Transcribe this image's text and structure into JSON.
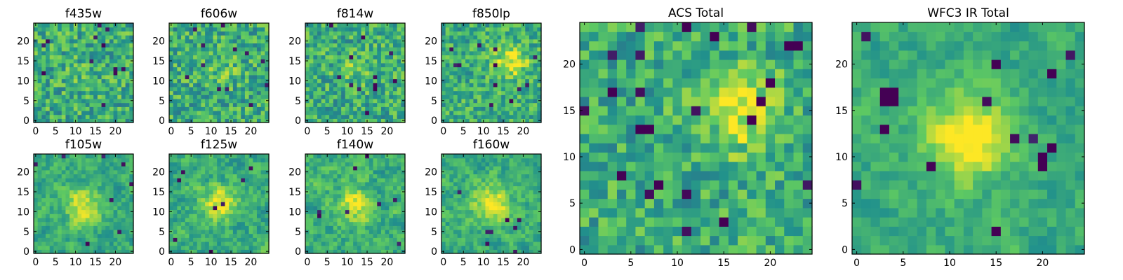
{
  "chart_data": {
    "type": "heatmap",
    "colormap": [
      "#440154",
      "#3b528b",
      "#21918c",
      "#5ec962",
      "#fde725"
    ],
    "panels": [
      {
        "title": "f435w",
        "grid_size": 25,
        "xticks": [
          0,
          5,
          10,
          15,
          20
        ],
        "yticks": [
          0,
          5,
          10,
          15,
          20
        ],
        "source_peak": [
          12,
          12
        ],
        "source_strength": 0.05,
        "noise": 0.22,
        "smooth": 0,
        "seed": 11,
        "dark_pixels": []
      },
      {
        "title": "f606w",
        "grid_size": 25,
        "xticks": [
          0,
          5,
          10,
          15,
          20
        ],
        "yticks": [
          0,
          5,
          10,
          15,
          20
        ],
        "source_peak": [
          13,
          13
        ],
        "source_strength": 0.1,
        "noise": 0.22,
        "smooth": 0,
        "seed": 22,
        "dark_pixels": []
      },
      {
        "title": "f814w",
        "grid_size": 25,
        "xticks": [
          0,
          5,
          10,
          15,
          20
        ],
        "yticks": [
          0,
          5,
          10,
          15,
          20
        ],
        "source_peak": [
          12,
          13
        ],
        "source_strength": 0.12,
        "noise": 0.22,
        "smooth": 0,
        "seed": 33,
        "dark_pixels": []
      },
      {
        "title": "f850lp",
        "grid_size": 25,
        "xticks": [
          0,
          5,
          10,
          15,
          20
        ],
        "yticks": [
          0,
          5,
          10,
          15,
          20
        ],
        "source_peak": [
          17,
          15
        ],
        "source_strength": 0.35,
        "noise": 0.2,
        "smooth": 0,
        "seed": 44,
        "dark_pixels": []
      },
      {
        "title": "f105w",
        "grid_size": 25,
        "xticks": [
          0,
          5,
          10,
          15,
          20
        ],
        "yticks": [
          0,
          5,
          10,
          15,
          20
        ],
        "source_peak": [
          12,
          12
        ],
        "source_strength": 0.35,
        "noise": 0.22,
        "smooth": 1,
        "seed": 55,
        "dark_pixels": []
      },
      {
        "title": "f125w",
        "grid_size": 25,
        "xticks": [
          0,
          5,
          10,
          15,
          20
        ],
        "yticks": [
          0,
          5,
          10,
          15,
          20
        ],
        "source_peak": [
          12,
          12
        ],
        "source_strength": 0.35,
        "noise": 0.24,
        "smooth": 1,
        "seed": 66,
        "dark_pixels": []
      },
      {
        "title": "f140w",
        "grid_size": 25,
        "xticks": [
          0,
          5,
          10,
          15,
          20
        ],
        "yticks": [
          0,
          5,
          10,
          15,
          20
        ],
        "source_peak": [
          12,
          12
        ],
        "source_strength": 0.3,
        "noise": 0.24,
        "smooth": 1,
        "seed": 77,
        "dark_pixels": []
      },
      {
        "title": "f160w",
        "grid_size": 25,
        "xticks": [
          0,
          5,
          10,
          15,
          20
        ],
        "yticks": [
          0,
          5,
          10,
          15,
          20
        ],
        "source_peak": [
          12,
          12
        ],
        "source_strength": 0.4,
        "noise": 0.22,
        "smooth": 1,
        "seed": 88,
        "dark_pixels": []
      },
      {
        "title": "ACS Total",
        "grid_size": 25,
        "xticks": [
          0,
          5,
          10,
          15,
          20
        ],
        "yticks": [
          0,
          5,
          10,
          15,
          20
        ],
        "source_peak": [
          17,
          15
        ],
        "source_strength": 0.35,
        "noise": 0.2,
        "smooth": 0,
        "seed": 99,
        "dark_pixels": [
          [
            6,
            13
          ],
          [
            7,
            13
          ],
          [
            4,
            8
          ],
          [
            14,
            23
          ],
          [
            22,
            22
          ],
          [
            23,
            22
          ],
          [
            3,
            17
          ],
          [
            18,
            14
          ],
          [
            19,
            16
          ],
          [
            20,
            18
          ],
          [
            15,
            3
          ],
          [
            8,
            7
          ]
        ]
      },
      {
        "title": "WFC3 IR Total",
        "grid_size": 25,
        "xticks": [
          0,
          5,
          10,
          15,
          20
        ],
        "yticks": [
          0,
          5,
          10,
          15,
          20
        ],
        "source_peak": [
          12,
          12
        ],
        "source_strength": 0.45,
        "noise": 0.18,
        "smooth": 1,
        "seed": 111,
        "dark_pixels": [
          [
            3,
            17
          ],
          [
            4,
            17
          ],
          [
            3,
            16
          ],
          [
            4,
            16
          ],
          [
            15,
            20
          ],
          [
            21,
            19
          ],
          [
            20,
            9
          ],
          [
            20,
            10
          ],
          [
            21,
            11
          ],
          [
            15,
            2
          ]
        ]
      }
    ]
  }
}
